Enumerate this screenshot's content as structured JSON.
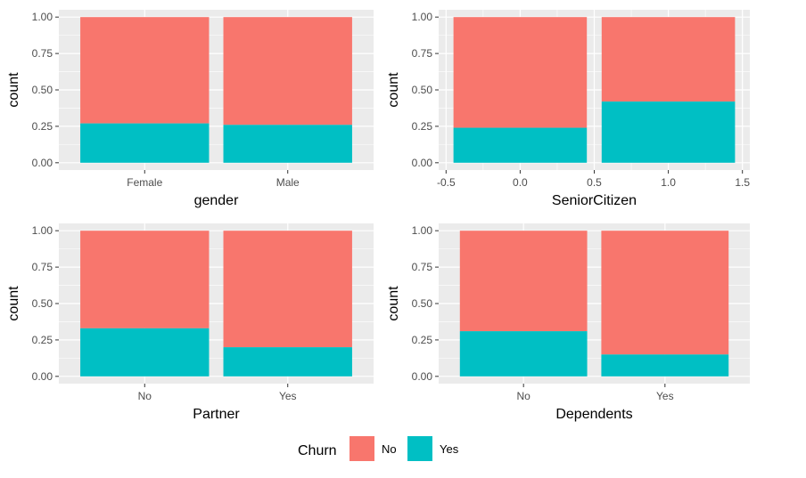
{
  "colors": {
    "panel_bg": "#EBEBEB",
    "grid": "#FFFFFF",
    "No": "#F8766D",
    "Yes": "#00BFC4"
  },
  "legend": {
    "title": "Churn",
    "items": [
      {
        "label": "No",
        "color": "#F8766D"
      },
      {
        "label": "Yes",
        "color": "#00BFC4"
      }
    ]
  },
  "chart_data": [
    {
      "type": "bar",
      "position": "fill",
      "xlabel": "gender",
      "ylabel": "count",
      "x_axis": "categorical",
      "categories": [
        "Female",
        "Male"
      ],
      "ylim": [
        0,
        1
      ],
      "yticks": [
        "0.00",
        "0.25",
        "0.50",
        "0.75",
        "1.00"
      ],
      "series": [
        {
          "name": "No",
          "values": [
            0.73,
            0.74
          ]
        },
        {
          "name": "Yes",
          "values": [
            0.27,
            0.26
          ]
        }
      ]
    },
    {
      "type": "bar",
      "position": "fill",
      "xlabel": "SeniorCitizen",
      "ylabel": "count",
      "x_axis": "numeric",
      "xlim": [
        -0.55,
        1.55
      ],
      "xticks": [
        "-0.5",
        "0.0",
        "0.5",
        "1.0",
        "1.5"
      ],
      "xtick_values": [
        -0.5,
        0.0,
        0.5,
        1.0,
        1.5
      ],
      "x": [
        0,
        1
      ],
      "ylim": [
        0,
        1
      ],
      "yticks": [
        "0.00",
        "0.25",
        "0.50",
        "0.75",
        "1.00"
      ],
      "series": [
        {
          "name": "No",
          "values": [
            0.76,
            0.58
          ]
        },
        {
          "name": "Yes",
          "values": [
            0.24,
            0.42
          ]
        }
      ]
    },
    {
      "type": "bar",
      "position": "fill",
      "xlabel": "Partner",
      "ylabel": "count",
      "x_axis": "categorical",
      "categories": [
        "No",
        "Yes"
      ],
      "ylim": [
        0,
        1
      ],
      "yticks": [
        "0.00",
        "0.25",
        "0.50",
        "0.75",
        "1.00"
      ],
      "series": [
        {
          "name": "No",
          "values": [
            0.67,
            0.8
          ]
        },
        {
          "name": "Yes",
          "values": [
            0.33,
            0.2
          ]
        }
      ]
    },
    {
      "type": "bar",
      "position": "fill",
      "xlabel": "Dependents",
      "ylabel": "count",
      "x_axis": "categorical",
      "categories": [
        "No",
        "Yes"
      ],
      "ylim": [
        0,
        1
      ],
      "yticks": [
        "0.00",
        "0.25",
        "0.50",
        "0.75",
        "1.00"
      ],
      "series": [
        {
          "name": "No",
          "values": [
            0.69,
            0.85
          ]
        },
        {
          "name": "Yes",
          "values": [
            0.31,
            0.15
          ]
        }
      ]
    }
  ]
}
